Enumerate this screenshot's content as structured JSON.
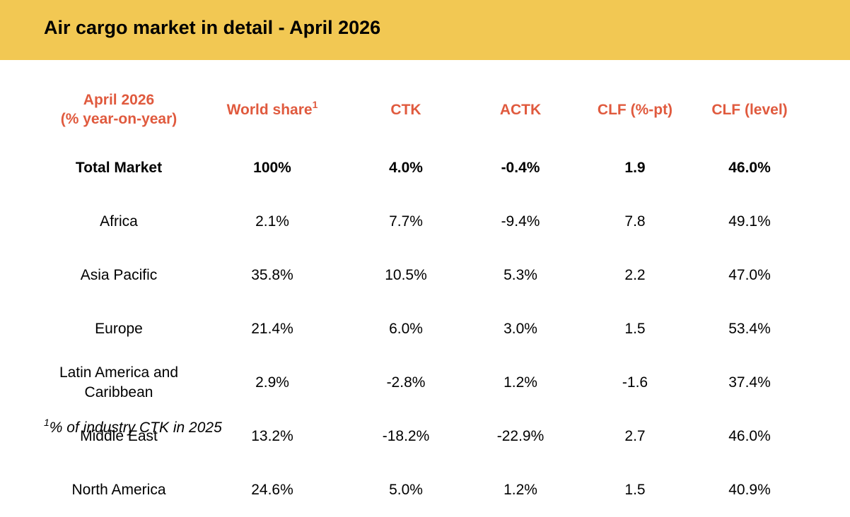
{
  "header": {
    "title": "Air cargo market in detail - April 2026"
  },
  "table": {
    "columns": [
      {
        "lines": [
          "April 2026",
          "(% year-on-year)"
        ]
      },
      {
        "label": "World share",
        "sup": "1"
      },
      {
        "label": "CTK"
      },
      {
        "label": "ACTK"
      },
      {
        "label": "CLF (%-pt)"
      },
      {
        "label": "CLF (level)"
      }
    ],
    "rows": [
      [
        "Total Market",
        "100%",
        "4.0%",
        "-0.4%",
        "1.9",
        "46.0%"
      ],
      [
        "Africa",
        "2.1%",
        "7.7%",
        "-9.4%",
        "7.8",
        "49.1%"
      ],
      [
        "Asia Pacific",
        "35.8%",
        "10.5%",
        "5.3%",
        "2.2",
        "47.0%"
      ],
      [
        "Europe",
        "21.4%",
        "6.0%",
        "3.0%",
        "1.5",
        "53.4%"
      ],
      [
        "Latin America and Caribbean",
        "2.9%",
        "-2.8%",
        "1.2%",
        "-1.6",
        "37.4%"
      ],
      [
        "Middle East",
        "13.2%",
        "-18.2%",
        "-22.9%",
        "2.7",
        "46.0%"
      ],
      [
        "North America",
        "24.6%",
        "5.0%",
        "1.2%",
        "1.5",
        "40.9%"
      ]
    ]
  },
  "footnote": {
    "marker": "1",
    "text": "% of industry CTK in 2025"
  }
}
